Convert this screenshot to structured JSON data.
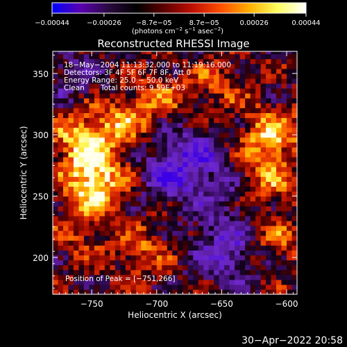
{
  "chart_data": {
    "type": "heatmap",
    "title": "Reconstructed RHESSI Image",
    "xlabel": "Heliocentric X (arcsec)",
    "ylabel": "Heliocentric Y (arcsec)",
    "xlim": [
      -780,
      -592
    ],
    "ylim": [
      170,
      368
    ],
    "x_ticks": [
      -750,
      -700,
      -650,
      -600
    ],
    "y_ticks": [
      200,
      250,
      300,
      350
    ],
    "x_tick_labels": [
      "−750",
      "−700",
      "−650",
      "−600"
    ],
    "y_tick_labels": [
      "200",
      "250",
      "300",
      "350"
    ],
    "colorbar": {
      "ticks": [
        -0.00044,
        -0.00026,
        -8.7e-05,
        8.7e-05,
        0.00026,
        0.00044
      ],
      "tick_labels": [
        "−0.00044",
        "−0.00026",
        "−8.7e−05",
        "8.7e−05",
        "0.00026",
        "0.00044"
      ],
      "range": [
        -0.00044,
        0.00044
      ],
      "label_main": "(photons cm",
      "label_sup1": "−2",
      "label_mid1": " s",
      "label_sup2": "−1",
      "label_mid2": " asec",
      "label_sup3": "−2",
      "label_end": ")",
      "colors": [
        "#0000ff",
        "#5a00b0",
        "#2a0a40",
        "#000000",
        "#600000",
        "#c01000",
        "#ff5000",
        "#ffb000",
        "#ffff60",
        "#ffffff"
      ]
    },
    "annotations": {
      "time_range": "18−May−2004 11:13:32.000 to 11:19:16.000",
      "detectors": "Detectors: 3F 4F 5F 6F 7F 8F, Att 0",
      "energy": "Energy Range: 25.0 − 50.0 keV",
      "algorithm": "Clean",
      "counts": "Total counts: 9.59E+03",
      "peak": "Position of Peak = [−751,266]"
    },
    "peak_position": [
      -751,
      266
    ],
    "bright_regions": [
      {
        "x": -748,
        "y": 262,
        "amp": 1.0
      },
      {
        "x": -758,
        "y": 296,
        "amp": 0.75
      },
      {
        "x": -730,
        "y": 310,
        "amp": 0.5
      },
      {
        "x": -612,
        "y": 300,
        "amp": 0.75
      },
      {
        "x": -618,
        "y": 262,
        "amp": 0.6
      },
      {
        "x": -700,
        "y": 330,
        "amp": 0.4
      },
      {
        "x": -712,
        "y": 205,
        "amp": 0.45
      },
      {
        "x": -760,
        "y": 220,
        "amp": 0.35
      },
      {
        "x": -608,
        "y": 215,
        "amp": 0.4
      },
      {
        "x": -655,
        "y": 340,
        "amp": 0.35
      }
    ],
    "dim_regions": [
      {
        "x": -688,
        "y": 268,
        "amp": 0.55
      },
      {
        "x": -648,
        "y": 205,
        "amp": 0.6
      },
      {
        "x": -670,
        "y": 285,
        "amp": 0.45
      },
      {
        "x": -765,
        "y": 345,
        "amp": 0.3
      },
      {
        "x": -640,
        "y": 250,
        "amp": 0.35
      }
    ]
  },
  "footer": {
    "timestamp": "30−Apr−2022 20:58"
  }
}
